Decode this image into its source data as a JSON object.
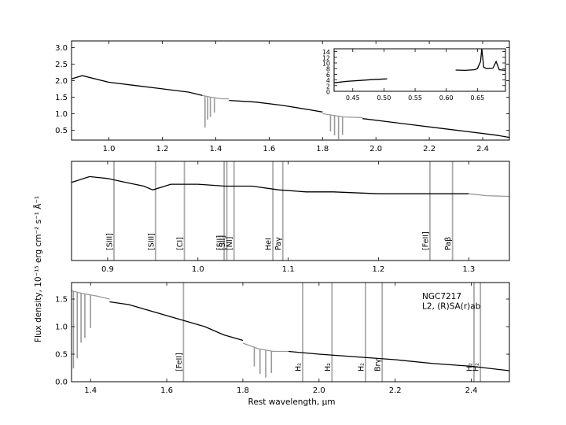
{
  "chart_data": [
    {
      "type": "line",
      "name": "top-panel",
      "xlim": [
        0.86,
        2.5
      ],
      "ylim": [
        0.2,
        3.2
      ],
      "xticks": [
        "1.0",
        "1.2",
        "1.4",
        "1.6",
        "1.8",
        "2.0",
        "2.2",
        "2.4"
      ],
      "yticks": [
        "0.5",
        "1.0",
        "1.5",
        "2.0",
        "2.5",
        "3.0"
      ],
      "series": [
        {
          "color": "#000000",
          "x": [
            0.86,
            0.9,
            1.0,
            1.1,
            1.2,
            1.3,
            1.35
          ],
          "y": [
            2.05,
            2.15,
            1.95,
            1.85,
            1.75,
            1.65,
            1.55
          ]
        },
        {
          "color": "#999999",
          "x": [
            1.35,
            1.38,
            1.42,
            1.45
          ],
          "y": [
            1.55,
            1.5,
            1.45,
            1.45
          ]
        },
        {
          "color": "#000000",
          "x": [
            1.45,
            1.55,
            1.65,
            1.75,
            1.8
          ],
          "y": [
            1.4,
            1.35,
            1.25,
            1.12,
            1.05
          ]
        },
        {
          "color": "#999999",
          "x": [
            1.8,
            1.84,
            1.88,
            1.95
          ],
          "y": [
            1.0,
            0.95,
            0.9,
            0.88
          ]
        },
        {
          "color": "#000000",
          "x": [
            1.95,
            2.05,
            2.15,
            2.25,
            2.35,
            2.45,
            2.5
          ],
          "y": [
            0.85,
            0.75,
            0.65,
            0.55,
            0.45,
            0.35,
            0.28
          ]
        }
      ],
      "absorption_features": [
        {
          "x": 1.36,
          "depth": 0.95,
          "color": "#999999"
        },
        {
          "x": 1.37,
          "depth": 0.7,
          "color": "#999999"
        },
        {
          "x": 1.38,
          "depth": 0.6,
          "color": "#999999"
        },
        {
          "x": 1.395,
          "depth": 0.45,
          "color": "#999999"
        },
        {
          "x": 1.83,
          "depth": 0.5,
          "color": "#999999"
        },
        {
          "x": 1.845,
          "depth": 0.6,
          "color": "#999999"
        },
        {
          "x": 1.86,
          "depth": 0.7,
          "color": "#999999"
        },
        {
          "x": 1.875,
          "depth": 0.55,
          "color": "#999999"
        }
      ],
      "inset": {
        "type": "line",
        "xlim": [
          0.42,
          0.695
        ],
        "ylim": [
          0,
          15
        ],
        "xticks": [
          "0.45",
          "0.50",
          "0.55",
          "0.60",
          "0.65"
        ],
        "yticks": [
          "0",
          "2",
          "4",
          "6",
          "8",
          "10",
          "12",
          "14"
        ],
        "series": [
          {
            "x": [
              0.42,
              0.44,
              0.46,
              0.48,
              0.505
            ],
            "y": [
              3.0,
              3.5,
              3.8,
              4.1,
              4.4
            ]
          },
          {
            "x": [
              0.615,
              0.63,
              0.645,
              0.65,
              0.655,
              0.657,
              0.66,
              0.665,
              0.675,
              0.68,
              0.685,
              0.695
            ],
            "y": [
              7.5,
              7.4,
              7.6,
              8.0,
              10.5,
              15.0,
              8.5,
              8.0,
              8.2,
              10.5,
              7.6,
              7.4
            ]
          }
        ]
      }
    },
    {
      "type": "line",
      "name": "middle-panel",
      "xlim": [
        0.86,
        1.345
      ],
      "ylim": [
        0.0,
        2.6
      ],
      "xticks": [
        "0.9",
        "1.0",
        "1.1",
        "1.2",
        "1.3"
      ],
      "yticks": [],
      "series": [
        {
          "color": "#000000",
          "x": [
            0.86,
            0.88,
            0.9,
            0.92,
            0.94,
            0.95,
            0.97,
            1.0,
            1.03,
            1.06,
            1.09,
            1.12,
            1.15,
            1.2,
            1.25,
            1.3
          ],
          "y": [
            2.05,
            2.2,
            2.15,
            2.05,
            1.95,
            1.85,
            2.0,
            2.0,
            1.95,
            1.95,
            1.85,
            1.8,
            1.8,
            1.75,
            1.75,
            1.75
          ]
        },
        {
          "color": "#999999",
          "x": [
            1.3,
            1.32,
            1.345
          ],
          "y": [
            1.75,
            1.7,
            1.68
          ]
        }
      ],
      "lines": [
        {
          "x": 0.907,
          "label": "[SIII]"
        },
        {
          "x": 0.953,
          "label": "[SIII]"
        },
        {
          "x": 0.985,
          "label": "[CI]"
        },
        {
          "x": 1.029,
          "label": "[SII]"
        },
        {
          "x": 1.032,
          "label": "[SII]"
        },
        {
          "x": 1.04,
          "label": "[NI]"
        },
        {
          "x": 1.083,
          "label": "HeI"
        },
        {
          "x": 1.094,
          "label": "Paγ"
        },
        {
          "x": 1.257,
          "label": "[FeII]"
        },
        {
          "x": 1.282,
          "label": "Paβ"
        }
      ]
    },
    {
      "type": "line",
      "name": "bottom-panel",
      "xlim": [
        1.35,
        2.5
      ],
      "ylim": [
        0.0,
        1.8
      ],
      "xticks": [
        "1.4",
        "1.6",
        "1.8",
        "2.0",
        "2.2",
        "2.4"
      ],
      "yticks": [
        "0.0",
        "0.5",
        "1.0",
        "1.5"
      ],
      "series": [
        {
          "color": "#999999",
          "x": [
            1.35,
            1.38,
            1.42,
            1.45
          ],
          "y": [
            1.65,
            1.6,
            1.55,
            1.5
          ]
        },
        {
          "color": "#000000",
          "x": [
            1.45,
            1.5,
            1.55,
            1.6,
            1.65,
            1.7,
            1.75,
            1.8
          ],
          "y": [
            1.45,
            1.4,
            1.3,
            1.2,
            1.1,
            1.0,
            0.85,
            0.75
          ]
        },
        {
          "color": "#999999",
          "x": [
            1.8,
            1.84,
            1.88,
            1.92
          ],
          "y": [
            0.7,
            0.6,
            0.55,
            0.55
          ]
        },
        {
          "color": "#000000",
          "x": [
            1.92,
            2.0,
            2.1,
            2.2,
            2.3,
            2.4,
            2.5
          ],
          "y": [
            0.55,
            0.5,
            0.45,
            0.4,
            0.33,
            0.28,
            0.2
          ]
        }
      ],
      "absorption_features": [
        {
          "x": 1.355,
          "depth": 1.4,
          "color": "#999999"
        },
        {
          "x": 1.365,
          "depth": 1.2,
          "color": "#999999"
        },
        {
          "x": 1.375,
          "depth": 0.9,
          "color": "#999999"
        },
        {
          "x": 1.385,
          "depth": 0.8,
          "color": "#999999"
        },
        {
          "x": 1.4,
          "depth": 0.6,
          "color": "#999999"
        },
        {
          "x": 1.83,
          "depth": 0.35,
          "color": "#999999"
        },
        {
          "x": 1.845,
          "depth": 0.45,
          "color": "#999999"
        },
        {
          "x": 1.86,
          "depth": 0.5,
          "color": "#999999"
        },
        {
          "x": 1.875,
          "depth": 0.4,
          "color": "#999999"
        }
      ],
      "lines": [
        {
          "x": 1.644,
          "label": "[FeII]"
        },
        {
          "x": 1.957,
          "label": "H₂"
        },
        {
          "x": 2.034,
          "label": "H₂"
        },
        {
          "x": 2.122,
          "label": "H₂"
        },
        {
          "x": 2.166,
          "label": "Brγ"
        },
        {
          "x": 2.407,
          "label": "H₂"
        },
        {
          "x": 2.424,
          "label": "H₂"
        }
      ],
      "annotation": [
        "NGC7217",
        "L2,  (R)SA(r)ab"
      ]
    }
  ],
  "axes": {
    "ylabel": "Flux density, 10⁻¹⁵ erg cm⁻² s⁻¹ Å⁻¹",
    "xlabel": "Rest wavelength, μm"
  }
}
